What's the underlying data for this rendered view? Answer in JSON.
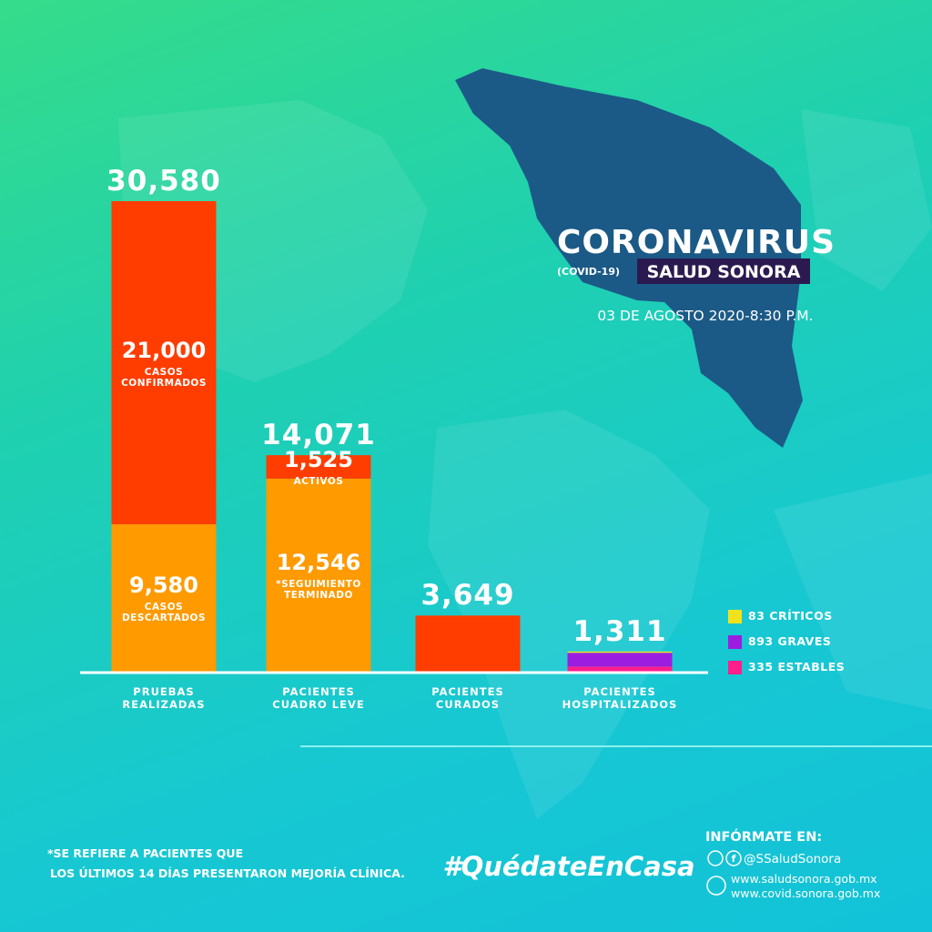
{
  "header": {
    "title": "CORONAVIRUS",
    "tag": "(COVID-19)",
    "org": "SALUD SONORA",
    "date": "03 DE AGOSTO 2020-8:30 P.M."
  },
  "chart_data": {
    "type": "stacked-bar",
    "bars": [
      {
        "category": "PRUEBAS REALIZADAS",
        "total": 30580,
        "total_label": "30,580",
        "segments": [
          {
            "value": 9580,
            "value_label": "9,580",
            "label": "CASOS DESCARTADOS",
            "color": "#ff9a00"
          },
          {
            "value": 21000,
            "value_label": "21,000",
            "label": "CASOS CONFIRMADOS",
            "color": "#ff3d00"
          }
        ]
      },
      {
        "category": "PACIENTES CUADRO LEVE",
        "total": 14071,
        "total_label": "14,071",
        "segments": [
          {
            "value": 12546,
            "value_label": "12,546",
            "label": "*SEGUIMIENTO TERMINADO",
            "color": "#ff9a00"
          },
          {
            "value": 1525,
            "value_label": "1,525",
            "label": "ACTIVOS",
            "color": "#ff3d00"
          }
        ]
      },
      {
        "category": "PACIENTES CURADOS",
        "total": 3649,
        "total_label": "3,649",
        "segments": [
          {
            "value": 3649,
            "color": "#ff3d00"
          }
        ]
      },
      {
        "category": "PACIENTES HOSPITALIZADOS",
        "total": 1311,
        "total_label": "1,311",
        "segments": [
          {
            "value": 335,
            "name": "ESTABLES",
            "color": "#ff1e8c"
          },
          {
            "value": 893,
            "name": "GRAVES",
            "color": "#9b1de0"
          },
          {
            "value": 83,
            "name": "CRÍTICOS",
            "color": "#f2e21c"
          }
        ]
      }
    ]
  },
  "footnote": {
    "lines": [
      "*SE REFIERE  A PACIENTES QUE",
      "LOS ÚLTIMOS 14 DÍAS PRESENTARON MEJORÍA CLÍNICA."
    ]
  },
  "hashtag": "#QuédateEnCasa",
  "info": {
    "title": "INFÓRMATE EN:",
    "social": "@SSaludSonora",
    "sites": [
      "www.saludsonora.gob.mx",
      "www.covid.sonora.gob.mx"
    ]
  }
}
